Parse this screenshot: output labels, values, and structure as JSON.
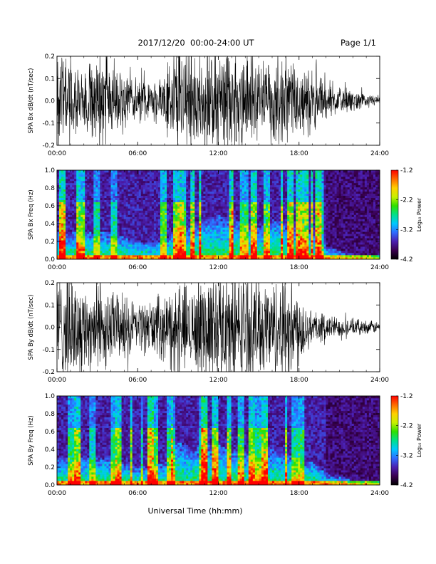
{
  "header": {
    "date_range": "2017/12/20  00:00-24:00 UT",
    "page": "Page 1/1"
  },
  "footer": {
    "xlabel": "Universal Time (hh:mm)"
  },
  "colors": {
    "trace": "#000000",
    "background": "#ffffff",
    "colorscale": [
      "#000000",
      "#3a0050",
      "#4b1fb0",
      "#2f6bff",
      "#00c8ff",
      "#00e08a",
      "#30e000",
      "#c8f000",
      "#ffd000",
      "#ff6a00",
      "#ff0000"
    ]
  },
  "chart_data": [
    {
      "type": "line",
      "ylabel": "SPA Bx dB/dt (nT/sec)",
      "xlim": [
        "00:00",
        "24:00"
      ],
      "ylim": [
        -0.2,
        0.2
      ],
      "xticks": [
        "00:00",
        "06:00",
        "12:00",
        "18:00",
        "24:00"
      ],
      "yticks": [
        "-0.2",
        "-0.1",
        "0.0",
        "0.1",
        "0.2"
      ],
      "series": [
        {
          "x_hours": [
            0,
            1,
            2,
            3,
            3.5,
            4,
            5,
            6,
            7,
            8,
            9,
            10,
            10.5,
            11,
            11.5,
            12,
            13,
            14,
            15,
            16,
            17,
            18,
            19,
            20,
            21,
            22,
            23,
            24
          ],
          "amplitude": [
            0.2,
            0.13,
            0.1,
            0.16,
            0.2,
            0.12,
            0.09,
            0.08,
            0.07,
            0.1,
            0.2,
            0.16,
            0.18,
            0.2,
            0.2,
            0.2,
            0.18,
            0.2,
            0.17,
            0.14,
            0.16,
            0.13,
            0.11,
            0.07,
            0.05,
            0.035,
            0.025,
            0.02
          ]
        }
      ]
    },
    {
      "type": "heatmap",
      "ylabel": "SPA Bx Freq (Hz)",
      "xlim": [
        "00:00",
        "24:00"
      ],
      "ylim": [
        0.0,
        1.0
      ],
      "xticks": [
        "00:00",
        "06:00",
        "12:00",
        "18:00",
        "24:00"
      ],
      "yticks": [
        "0.0",
        "0.2",
        "0.4",
        "0.6",
        "0.8",
        "1.0"
      ],
      "colorbar": {
        "label": "Log₁₀ Power",
        "range": [
          -4.2,
          -1.2
        ],
        "ticks": [
          "-1.2",
          "-2.2",
          "-3.2",
          "-4.2"
        ]
      },
      "x_hours": [
        0,
        2,
        4,
        6,
        8,
        9,
        10,
        11,
        12,
        14,
        15,
        16,
        17,
        18,
        19,
        20,
        22,
        24
      ],
      "activity_upper_hz": [
        0.3,
        0.3,
        0.3,
        0.2,
        0.2,
        0.4,
        0.35,
        0.45,
        0.5,
        0.4,
        0.35,
        0.45,
        0.4,
        0.35,
        0.3,
        0.15,
        0.06,
        0.04
      ]
    },
    {
      "type": "line",
      "ylabel": "SPA By dB/dt (nT/sec)",
      "xlim": [
        "00:00",
        "24:00"
      ],
      "ylim": [
        -0.2,
        0.2
      ],
      "xticks": [
        "00:00",
        "06:00",
        "12:00",
        "18:00",
        "24:00"
      ],
      "yticks": [
        "-0.2",
        "-0.1",
        "0.0",
        "0.1",
        "0.2"
      ],
      "series": [
        {
          "x_hours": [
            0,
            1,
            2,
            3,
            4,
            5,
            6,
            7,
            8,
            9,
            10,
            11,
            12,
            13,
            14,
            15,
            16,
            17,
            18,
            19,
            20,
            21,
            22,
            23,
            24
          ],
          "amplitude": [
            0.18,
            0.2,
            0.15,
            0.18,
            0.13,
            0.12,
            0.09,
            0.1,
            0.12,
            0.16,
            0.15,
            0.2,
            0.2,
            0.2,
            0.2,
            0.18,
            0.17,
            0.2,
            0.15,
            0.06,
            0.05,
            0.035,
            0.03,
            0.025,
            0.02
          ]
        }
      ]
    },
    {
      "type": "heatmap",
      "ylabel": "SPA By Freq (Hz)",
      "xlim": [
        "00:00",
        "24:00"
      ],
      "ylim": [
        0.0,
        1.0
      ],
      "xticks": [
        "00:00",
        "06:00",
        "12:00",
        "18:00",
        "24:00"
      ],
      "yticks": [
        "0.0",
        "0.2",
        "0.4",
        "0.6",
        "0.8",
        "1.0"
      ],
      "colorbar": {
        "label": "Log₁₀ Power",
        "range": [
          -4.2,
          -1.2
        ],
        "ticks": [
          "-1.2",
          "-2.2",
          "-3.2",
          "-4.2"
        ]
      },
      "x_hours": [
        0,
        2,
        4,
        6,
        8,
        9,
        10,
        11,
        12,
        14,
        15,
        16,
        17,
        18,
        19,
        20,
        22,
        24
      ],
      "activity_upper_hz": [
        0.3,
        0.3,
        0.3,
        0.2,
        0.25,
        0.5,
        0.4,
        0.45,
        0.45,
        0.35,
        0.35,
        0.4,
        0.35,
        0.3,
        0.25,
        0.15,
        0.06,
        0.04
      ]
    }
  ]
}
